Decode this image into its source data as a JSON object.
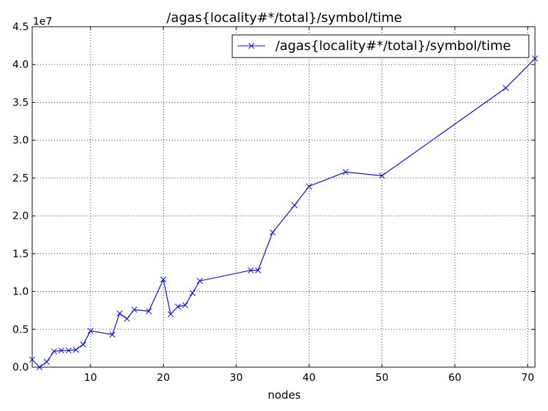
{
  "chart_data": {
    "type": "line",
    "title": "/agas{locality#*/total}/symbol/time",
    "xlabel": "nodes",
    "ylabel": "",
    "y_offset_label": "1e7",
    "xlim": [
      2,
      71
    ],
    "ylim": [
      0,
      4.5
    ],
    "x_ticks": [
      10,
      20,
      30,
      40,
      50,
      60,
      70
    ],
    "y_ticks": [
      0.0,
      0.5,
      1.0,
      1.5,
      2.0,
      2.5,
      3.0,
      3.5,
      4.0,
      4.5
    ],
    "y_tick_labels": [
      "0.0",
      "0.5",
      "1.0",
      "1.5",
      "2.0",
      "2.5",
      "3.0",
      "3.5",
      "4.0",
      "4.5"
    ],
    "grid": true,
    "legend_position": "top-right",
    "series": [
      {
        "name": "/agas{locality#*/total}/symbol/time",
        "color": "#0000ff",
        "marker": "x",
        "x": [
          2,
          3,
          4,
          5,
          6,
          7,
          8,
          9,
          10,
          13,
          14,
          15,
          16,
          18,
          20,
          21,
          22,
          23,
          24,
          25,
          32,
          33,
          35,
          38,
          40,
          45,
          50,
          67,
          71
        ],
        "y": [
          0.1,
          0.0,
          0.07,
          0.21,
          0.22,
          0.22,
          0.23,
          0.3,
          0.48,
          0.43,
          0.71,
          0.64,
          0.76,
          0.74,
          1.16,
          0.7,
          0.8,
          0.82,
          0.98,
          1.14,
          1.28,
          1.28,
          1.78,
          2.14,
          2.39,
          2.58,
          2.53,
          3.69,
          4.08
        ]
      }
    ]
  }
}
